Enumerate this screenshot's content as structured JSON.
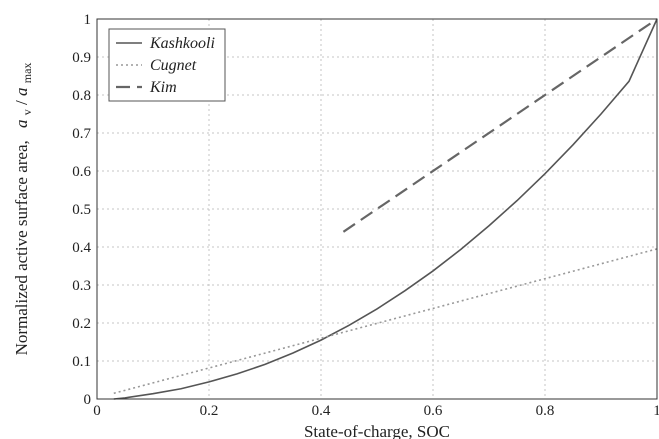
{
  "chart_data": {
    "type": "line",
    "xlabel": "State-of-charge, SOC",
    "ylabel": {
      "prefix": "Normalized active surface area,",
      "numerator": "a",
      "numerator_sub": "v",
      "slash": "/",
      "denominator": "a",
      "denominator_sub": "max"
    },
    "xlim": [
      0,
      1
    ],
    "ylim": [
      0,
      1
    ],
    "x_ticks": [
      "0",
      "0.2",
      "0.4",
      "0.6",
      "0.8",
      "1"
    ],
    "y_ticks": [
      "0",
      "0.1",
      "0.2",
      "0.3",
      "0.4",
      "0.5",
      "0.6",
      "0.7",
      "0.8",
      "0.9",
      "1"
    ],
    "grid": true,
    "legend_position": "top-left",
    "series": [
      {
        "name": "Kashkooli",
        "style": "solid",
        "color": "#555555",
        "x": [
          0.03,
          0.05,
          0.1,
          0.15,
          0.2,
          0.25,
          0.3,
          0.35,
          0.4,
          0.45,
          0.5,
          0.55,
          0.6,
          0.65,
          0.7,
          0.75,
          0.8,
          0.85,
          0.9,
          0.95,
          1.0
        ],
        "y": [
          0.0,
          0.003,
          0.014,
          0.027,
          0.045,
          0.066,
          0.091,
          0.121,
          0.155,
          0.194,
          0.237,
          0.285,
          0.337,
          0.394,
          0.456,
          0.522,
          0.593,
          0.669,
          0.75,
          0.836,
          1.0
        ]
      },
      {
        "name": "Cugnet",
        "style": "dotted",
        "color": "#999999",
        "x": [
          0.03,
          1.0
        ],
        "y": [
          0.015,
          0.395
        ]
      },
      {
        "name": "Kim",
        "style": "dashed",
        "color": "#666666",
        "x": [
          0.44,
          1.0
        ],
        "y": [
          0.44,
          1.0
        ]
      }
    ]
  }
}
